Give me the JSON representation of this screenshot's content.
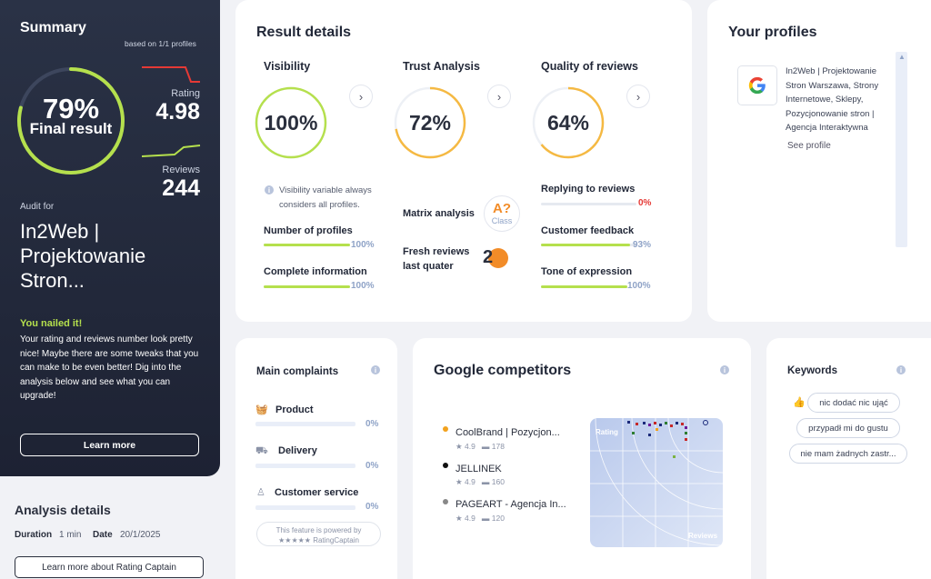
{
  "summary": {
    "title": "Summary",
    "based_on": "based on 1/1 profiles",
    "final_pct": "79%",
    "final_label": "Final result",
    "rating_label": "Rating",
    "rating_value": "4.98",
    "reviews_label": "Reviews",
    "reviews_value": "244",
    "audit_for_label": "Audit for",
    "audit_name": "In2Web | Projektowanie Strona...",
    "audit_line1": "In2Web |",
    "audit_line2": "Projektowanie",
    "audit_line3": "Stron...",
    "nailed_title": "You nailed it!",
    "nailed_text": "Your rating and reviews number look pretty nice! Maybe there are some tweaks that you can make to be even better! Dig into the analysis below and see what you can upgrade!",
    "learn_more": "Learn more",
    "final_fraction": 0.79,
    "accent": "#b5e04d"
  },
  "analysis": {
    "title": "Analysis details",
    "duration_label": "Duration",
    "duration_value": "1 min",
    "date_label": "Date",
    "date_value": "20/1/2025",
    "learn_more_rc": "Learn more about Rating Captain"
  },
  "result": {
    "title": "Result details",
    "visibility": {
      "title": "Visibility",
      "pct": "100%",
      "fraction": 1.0,
      "color": "#b5e04d",
      "note": "Visibility variable always considers all profiles.",
      "items": [
        {
          "label": "Number of profiles",
          "pct": "100%",
          "fraction": 1.0
        },
        {
          "label": "Complete information",
          "pct": "100%",
          "fraction": 1.0
        }
      ]
    },
    "trust": {
      "title": "Trust Analysis",
      "pct": "72%",
      "fraction": 0.72,
      "color": "#f5b942",
      "matrix_label": "Matrix analysis",
      "class_letter": "A?",
      "class_label": "Class",
      "fresh_label_1": "Fresh reviews",
      "fresh_label_2": "last quater",
      "fresh_value": "2"
    },
    "quality": {
      "title": "Quality of reviews",
      "pct": "64%",
      "fraction": 0.64,
      "color": "#f5b942",
      "items": [
        {
          "label": "Replying to reviews",
          "pct": "0%",
          "fraction": 0.0,
          "color": "#e53935"
        },
        {
          "label": "Customer feedback",
          "pct": "93%",
          "fraction": 0.93,
          "color": "#8fa3c7"
        },
        {
          "label": "Tone of expression",
          "pct": "100%",
          "fraction": 1.0,
          "color": "#8fa3c7"
        }
      ]
    }
  },
  "profiles": {
    "title": "Your profiles",
    "entry_name": "In2Web | Projektowanie Stron Warszawa, Strony Internetowe, Sklepy, Pozycjonowanie stron | Agencja Interaktywna",
    "entry_lines": [
      "In2Web | Projektowanie",
      "Stron Warszawa, Strony",
      "Internetowe, Sklepy,",
      "Pozycjonowanie stron |",
      "Agencja Interaktywna"
    ],
    "see_profile": "See profile"
  },
  "complaints": {
    "title": "Main complaints",
    "items": [
      {
        "label": "Product",
        "pct": "0%",
        "icon": "basket-icon"
      },
      {
        "label": "Delivery",
        "pct": "0%",
        "icon": "truck-icon"
      },
      {
        "label": "Customer service",
        "pct": "0%",
        "icon": "person-icon"
      }
    ],
    "powered_by": "This feature is powered by",
    "powered_brand": "★★★★★ RatingCaptain"
  },
  "competitors": {
    "title": "Google competitors",
    "items": [
      {
        "name": "CoolBrand | Pozycjon...",
        "rating": "4.9",
        "reviews": "178",
        "dot": "#f2a21e"
      },
      {
        "name": "JELLINEK",
        "rating": "4.9",
        "reviews": "160",
        "dot": "#111111"
      },
      {
        "name": "PAGEART - Agencja In...",
        "rating": "4.9",
        "reviews": "120",
        "dot": "#888888"
      }
    ],
    "chart_rating_label": "Rating",
    "chart_reviews_label": "Reviews"
  },
  "keywords": {
    "title": "Keywords",
    "items": [
      "nic dodać nic ująć",
      "przypadł mi do gustu",
      "nie mam żadnych zastr..."
    ]
  }
}
